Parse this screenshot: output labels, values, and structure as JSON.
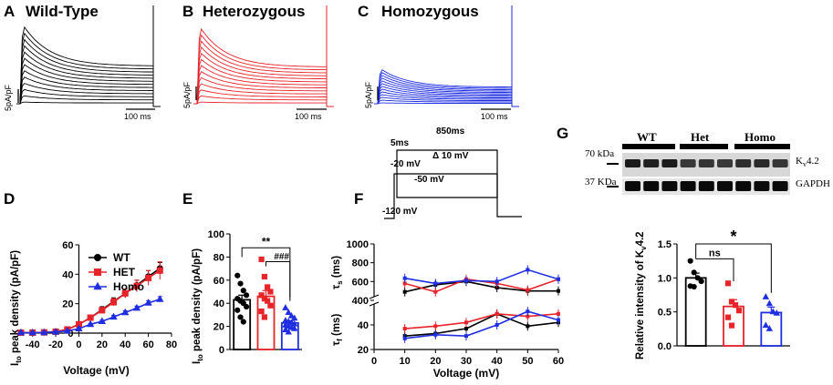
{
  "panels": {
    "A": {
      "letter": "A",
      "title": "Wild-Type",
      "scale_y": "5pA/pF",
      "scale_x": "100 ms",
      "color": "#000000"
    },
    "B": {
      "letter": "B",
      "title": "Heterozygous",
      "scale_y": "5pA/pF",
      "scale_x": "100 ms",
      "color": "#e8242b"
    },
    "C": {
      "letter": "C",
      "title": "Homozygous",
      "scale_y": "5pA/pF",
      "scale_x": "100 ms",
      "color": "#1f2fe0"
    },
    "D": {
      "letter": "D"
    },
    "E": {
      "letter": "E"
    },
    "F": {
      "letter": "F"
    },
    "G": {
      "letter": "G"
    }
  },
  "protocol": {
    "duration_label": "850ms",
    "pre_label": "5ms",
    "v1_label": "-20 mV",
    "step_label": "Δ 10 mV",
    "v_hold_label": "-120 mV",
    "v2_label": "-50 mV"
  },
  "colors": {
    "wt": "#000000",
    "het": "#e8242b",
    "homo": "#1f2fe0"
  },
  "chart_data": [
    {
      "panel": "D",
      "type": "line",
      "ylabel_main": "I",
      "ylabel_sub": "to",
      "ylabel_rest": " peak density (pA/pF)",
      "xlabel": "Voltage (mV)",
      "xlim": [
        -50,
        80
      ],
      "ylim": [
        0,
        60
      ],
      "xticks": [
        -40,
        -20,
        0,
        20,
        40,
        60,
        80
      ],
      "yticks": [
        0,
        20,
        40,
        60
      ],
      "x": [
        -50,
        -40,
        -30,
        -20,
        -10,
        0,
        10,
        20,
        30,
        40,
        50,
        60,
        70
      ],
      "series": [
        {
          "name": "WT",
          "marker": "circle",
          "values": [
            0.3,
            0.3,
            0.5,
            1,
            2.5,
            6,
            10.5,
            16,
            21.5,
            27,
            32.5,
            38.5,
            44
          ],
          "err": [
            0.3,
            0.3,
            0.3,
            0.4,
            0.6,
            1,
            1.5,
            2,
            2.5,
            3,
            3.5,
            4,
            4
          ]
        },
        {
          "name": "HET",
          "marker": "square",
          "values": [
            0.3,
            0.3,
            0.5,
            1,
            2.5,
            6,
            10.5,
            15.5,
            21,
            27,
            32,
            37.5,
            42.5
          ],
          "err": [
            0.3,
            0.3,
            0.3,
            0.4,
            0.6,
            1,
            1.5,
            2,
            2.5,
            3,
            4,
            5,
            6
          ]
        },
        {
          "name": "Homo",
          "marker": "triangle",
          "values": [
            0.3,
            0.3,
            0.4,
            0.8,
            1.5,
            3,
            6,
            8,
            11,
            14,
            17,
            20.5,
            23
          ],
          "err": [
            0.2,
            0.2,
            0.2,
            0.3,
            0.4,
            0.5,
            0.6,
            0.8,
            1,
            1.2,
            1.4,
            1.6,
            1.8
          ]
        }
      ]
    },
    {
      "panel": "E",
      "type": "bar",
      "ylabel_main": "I",
      "ylabel_sub": "to",
      "ylabel_rest": " peak density (pA/pF)",
      "ylim": [
        0,
        100
      ],
      "yticks": [
        0,
        20,
        40,
        60,
        80,
        100
      ],
      "annotations": [
        "**",
        "###"
      ],
      "series": [
        {
          "name": "WT",
          "mean": 43,
          "err": 4,
          "marker": "circle",
          "points": [
            64,
            57,
            51,
            47,
            44,
            42,
            40,
            37,
            34,
            28,
            24
          ]
        },
        {
          "name": "HET",
          "mean": 46,
          "err": 5,
          "marker": "square",
          "points": [
            78,
            63,
            54,
            50,
            47,
            44,
            42,
            38,
            33,
            28
          ]
        },
        {
          "name": "Homo",
          "mean": 23,
          "err": 2,
          "marker": "triangle",
          "points": [
            36,
            32,
            29,
            27,
            25,
            24,
            23,
            22,
            21,
            20,
            19,
            18,
            17,
            15
          ]
        }
      ]
    },
    {
      "panel": "F",
      "type": "line",
      "xlabel": "Voltage (mV)",
      "ylabel_top_main": "τ",
      "ylabel_top_sub": "s",
      "ylabel_top_rest": " (ms)",
      "ylabel_bottom_main": "τ",
      "ylabel_bottom_sub": "f",
      "ylabel_bottom_rest": " (ms)",
      "xlim": [
        0,
        60
      ],
      "xticks": [
        0,
        10,
        20,
        30,
        40,
        50,
        60
      ],
      "ylim_top": [
        400,
        1000
      ],
      "yticks_top": [
        400,
        600,
        800,
        1000
      ],
      "ylim_bottom": [
        20,
        60
      ],
      "yticks_bottom": [
        20,
        40
      ],
      "x": [
        10,
        20,
        30,
        40,
        50,
        60
      ],
      "tau_s": [
        {
          "name": "WT",
          "values": [
            490,
            565,
            600,
            535,
            500,
            500
          ]
        },
        {
          "name": "HET",
          "values": [
            580,
            490,
            625,
            580,
            510,
            625
          ]
        },
        {
          "name": "Homo",
          "values": [
            635,
            580,
            610,
            600,
            725,
            625
          ]
        }
      ],
      "tau_f": [
        {
          "name": "WT",
          "values": [
            31,
            33,
            37,
            49,
            39,
            42
          ]
        },
        {
          "name": "HET",
          "values": [
            37,
            39,
            42,
            49,
            47,
            49
          ]
        },
        {
          "name": "Homo",
          "values": [
            29,
            32,
            31,
            40,
            51,
            44
          ]
        }
      ]
    },
    {
      "panel": "G",
      "type": "bar",
      "ylabel_main": "Relative intensity of K",
      "ylabel_sub": "v",
      "ylabel_rest": "4.2",
      "ylim": [
        0,
        1.5
      ],
      "yticks": [
        0.0,
        0.5,
        1.0,
        1.5
      ],
      "annotations": [
        "ns",
        "*"
      ],
      "series": [
        {
          "name": "WT",
          "mean": 1.0,
          "err": 0.07,
          "marker": "circle",
          "points": [
            1.25,
            1.08,
            1.0,
            0.95,
            0.88,
            0.87
          ]
        },
        {
          "name": "Het",
          "mean": 0.58,
          "err": 0.1,
          "marker": "square",
          "points": [
            0.92,
            0.65,
            0.6,
            0.52,
            0.42,
            0.3
          ]
        },
        {
          "name": "Homo",
          "mean": 0.49,
          "err": 0.08,
          "marker": "triangle",
          "points": [
            0.72,
            0.62,
            0.5,
            0.48,
            0.3,
            0.25
          ]
        }
      ]
    }
  ],
  "blot": {
    "group_labels": [
      "WT",
      "Het",
      "Homo"
    ],
    "mw_top": "70 kDa",
    "mw_bottom": "37 KDa",
    "band_top_main": "K",
    "band_top_sub": "v",
    "band_top_rest": "4.2",
    "band_bottom": "GAPDH"
  }
}
